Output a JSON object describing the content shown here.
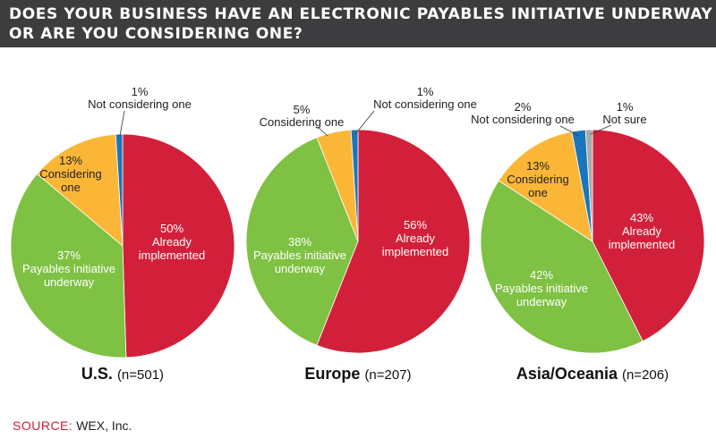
{
  "title": {
    "line1": "DOES YOUR BUSINESS HAVE AN ELECTRONIC PAYABLES INITIATIVE UNDERWAY",
    "line2": "OR ARE YOU CONSIDERING ONE?"
  },
  "source": {
    "label": "SOURCE:",
    "text": "WEX, Inc."
  },
  "colors": {
    "already": "#d2203a",
    "underway": "#7fc142",
    "considering": "#fbb638",
    "not_considering": "#1b75bb",
    "not_sure": "#a9a9a9"
  },
  "chart_data": [
    {
      "type": "pie",
      "region": "U.S.",
      "n_label": "(n=501)",
      "slices": [
        {
          "key": "already",
          "value": 50,
          "pct_label": "50%",
          "label": [
            "Already",
            "implemented"
          ]
        },
        {
          "key": "underway",
          "value": 37,
          "pct_label": "37%",
          "label": [
            "Payables initiative",
            "underway"
          ]
        },
        {
          "key": "considering",
          "value": 13,
          "pct_label": "13%",
          "label": [
            "Considering",
            "one"
          ]
        },
        {
          "key": "not_considering",
          "value": 1,
          "pct_label": "1%",
          "label": [
            "Not considering one"
          ]
        }
      ]
    },
    {
      "type": "pie",
      "region": "Europe",
      "n_label": "(n=207)",
      "slices": [
        {
          "key": "already",
          "value": 56,
          "pct_label": "56%",
          "label": [
            "Already",
            "implemented"
          ]
        },
        {
          "key": "underway",
          "value": 38,
          "pct_label": "38%",
          "label": [
            "Payables initiative",
            "underway"
          ]
        },
        {
          "key": "considering",
          "value": 5,
          "pct_label": "5%",
          "label": [
            "Considering one"
          ]
        },
        {
          "key": "not_considering",
          "value": 1,
          "pct_label": "1%",
          "label": [
            "Not considering one"
          ]
        }
      ]
    },
    {
      "type": "pie",
      "region": "Asia/Oceania",
      "n_label": "(n=206)",
      "slices": [
        {
          "key": "already",
          "value": 43,
          "pct_label": "43%",
          "label": [
            "Already",
            "implemented"
          ]
        },
        {
          "key": "underway",
          "value": 42,
          "pct_label": "42%",
          "label": [
            "Payables initiative",
            "underway"
          ]
        },
        {
          "key": "considering",
          "value": 13,
          "pct_label": "13%",
          "label": [
            "Considering",
            "one"
          ]
        },
        {
          "key": "not_considering",
          "value": 2,
          "pct_label": "2%",
          "label": [
            "Not considering one"
          ]
        },
        {
          "key": "not_sure",
          "value": 1,
          "pct_label": "1%",
          "label": [
            "Not sure"
          ]
        }
      ]
    }
  ]
}
